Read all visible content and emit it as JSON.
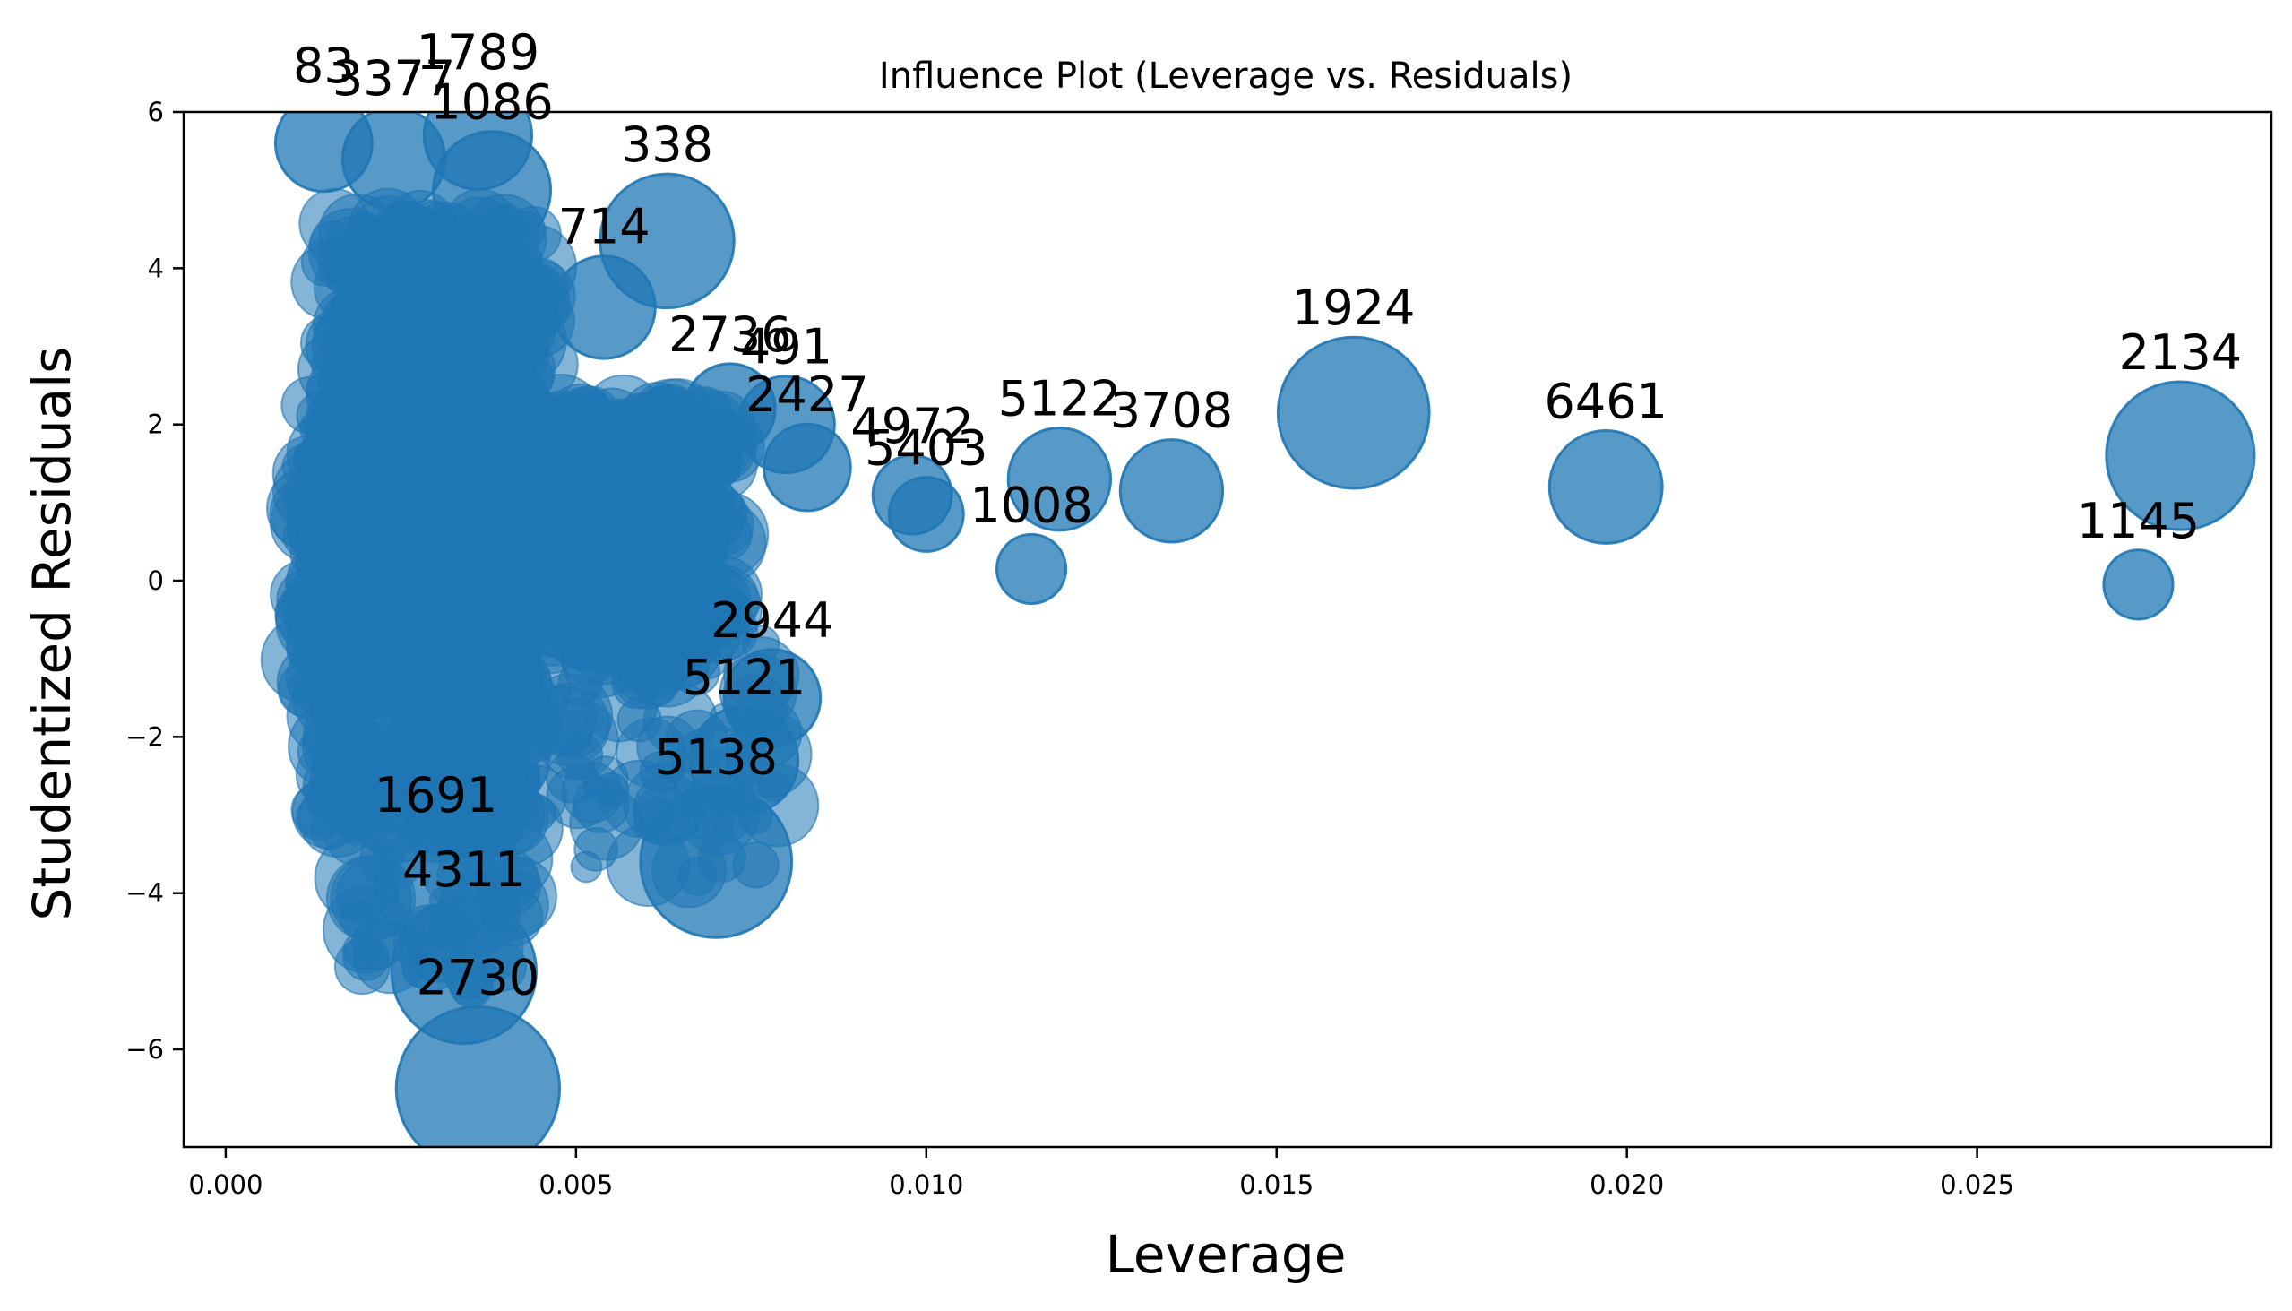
{
  "chart_data": {
    "type": "scatter",
    "title": "Influence Plot (Leverage vs. Residuals)",
    "xlabel": "Leverage",
    "ylabel": "Studentized Residuals",
    "xlim": [
      -0.0006,
      0.0292
    ],
    "ylim": [
      -7.25,
      6.0
    ],
    "xticks": [
      0.0,
      0.005,
      0.01,
      0.015,
      0.02,
      0.025
    ],
    "xtick_labels": [
      "0.000",
      "0.005",
      "0.010",
      "0.015",
      "0.020",
      "0.025"
    ],
    "yticks": [
      -6,
      -4,
      -2,
      0,
      2,
      4,
      6
    ],
    "ytick_labels": [
      "−6",
      "−4",
      "−2",
      "0",
      "2",
      "4",
      "6"
    ],
    "grid": false,
    "legend": "none",
    "marker_color": "#1f77b4",
    "marker_opacity": 0.75,
    "size_encoding": "Cook's distance (bubble area)",
    "points": [
      {
        "label": "83",
        "x": 0.0014,
        "y": 5.6,
        "s": 0.5
      },
      {
        "label": "3377",
        "x": 0.0024,
        "y": 5.4,
        "s": 0.6
      },
      {
        "label": "1789",
        "x": 0.0036,
        "y": 5.7,
        "s": 0.7
      },
      {
        "label": "1086",
        "x": 0.0038,
        "y": 5.0,
        "s": 0.9
      },
      {
        "label": "338",
        "x": 0.0063,
        "y": 4.35,
        "s": 1.3
      },
      {
        "label": "714",
        "x": 0.0054,
        "y": 3.5,
        "s": 0.6
      },
      {
        "label": "2736",
        "x": 0.0072,
        "y": 2.2,
        "s": 0.4
      },
      {
        "label": "491",
        "x": 0.008,
        "y": 2.0,
        "s": 0.5
      },
      {
        "label": "2427",
        "x": 0.0083,
        "y": 1.45,
        "s": 0.35
      },
      {
        "label": "4972",
        "x": 0.0098,
        "y": 1.1,
        "s": 0.25
      },
      {
        "label": "5403",
        "x": 0.01,
        "y": 0.85,
        "s": 0.2
      },
      {
        "label": "5122",
        "x": 0.0119,
        "y": 1.3,
        "s": 0.6
      },
      {
        "label": "3708",
        "x": 0.0135,
        "y": 1.15,
        "s": 0.6
      },
      {
        "label": "1008",
        "x": 0.0115,
        "y": 0.15,
        "s": 0.15
      },
      {
        "label": "1924",
        "x": 0.0161,
        "y": 2.15,
        "s": 1.8
      },
      {
        "label": "6461",
        "x": 0.0197,
        "y": 1.2,
        "s": 0.8
      },
      {
        "label": "2134",
        "x": 0.0279,
        "y": 1.6,
        "s": 1.7
      },
      {
        "label": "1145",
        "x": 0.0273,
        "y": -0.05,
        "s": 0.15
      },
      {
        "label": "2944",
        "x": 0.0078,
        "y": -1.5,
        "s": 0.5
      },
      {
        "label": "5121",
        "x": 0.0074,
        "y": -2.3,
        "s": 0.7
      },
      {
        "label": "5138",
        "x": 0.007,
        "y": -3.6,
        "s": 1.8
      },
      {
        "label": "1691",
        "x": 0.003,
        "y": -3.9,
        "s": 1.0
      },
      {
        "label": "4311",
        "x": 0.0034,
        "y": -5.0,
        "s": 1.6
      },
      {
        "label": "2730",
        "x": 0.0036,
        "y": -6.5,
        "s": 2.2
      }
    ]
  }
}
